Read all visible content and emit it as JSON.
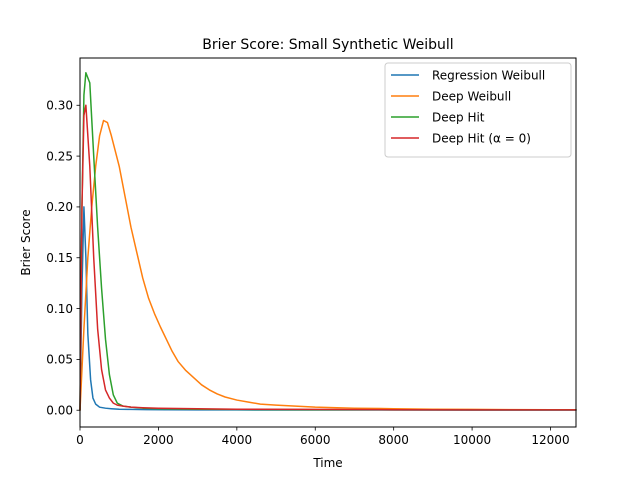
{
  "chart_data": {
    "type": "line",
    "title": "Brier Score: Small Synthetic Weibull",
    "xlabel": "Time",
    "ylabel": "Brier Score",
    "xlim": [
      0,
      12650
    ],
    "ylim": [
      -0.0165,
      0.3465
    ],
    "xticks": [
      0,
      2000,
      4000,
      6000,
      8000,
      10000,
      12000
    ],
    "xtick_labels": [
      "0",
      "2000",
      "4000",
      "6000",
      "8000",
      "10000",
      "12000"
    ],
    "yticks": [
      0.0,
      0.05,
      0.1,
      0.15,
      0.2,
      0.25,
      0.3
    ],
    "ytick_labels": [
      "0.00",
      "0.05",
      "0.10",
      "0.15",
      "0.20",
      "0.25",
      "0.30"
    ],
    "grid": false,
    "legend_position": "top-right",
    "series": [
      {
        "name": "Regression Weibull",
        "color": "#1f77b4",
        "x": [
          0,
          50,
          100,
          150,
          200,
          270,
          330,
          400,
          500,
          650,
          800,
          1000,
          1300,
          1700,
          2200,
          3000,
          4000,
          6000,
          8000,
          10000,
          12650
        ],
        "y": [
          0.0,
          0.12,
          0.2,
          0.15,
          0.075,
          0.03,
          0.012,
          0.006,
          0.003,
          0.002,
          0.0015,
          0.001,
          0.0008,
          0.0006,
          0.0005,
          0.0004,
          0.0003,
          0.0002,
          0.0002,
          0.0001,
          0.0001
        ]
      },
      {
        "name": "Deep Weibull",
        "color": "#ff7f0e",
        "x": [
          0,
          100,
          200,
          300,
          400,
          500,
          600,
          700,
          800,
          900,
          1000,
          1150,
          1300,
          1450,
          1600,
          1750,
          1900,
          2050,
          2200,
          2350,
          2500,
          2700,
          2900,
          3100,
          3300,
          3500,
          3700,
          4000,
          4300,
          4600,
          5000,
          5500,
          6000,
          7000,
          8000,
          9000,
          10000,
          11000,
          12000,
          12650
        ],
        "y": [
          0.0,
          0.08,
          0.15,
          0.2,
          0.24,
          0.27,
          0.285,
          0.283,
          0.27,
          0.255,
          0.24,
          0.21,
          0.18,
          0.155,
          0.13,
          0.11,
          0.095,
          0.082,
          0.07,
          0.058,
          0.048,
          0.039,
          0.032,
          0.025,
          0.02,
          0.016,
          0.013,
          0.01,
          0.008,
          0.006,
          0.005,
          0.004,
          0.003,
          0.002,
          0.0015,
          0.001,
          0.0008,
          0.0006,
          0.0005,
          0.0005
        ]
      },
      {
        "name": "Deep Hit",
        "color": "#2ca02c",
        "x": [
          0,
          50,
          100,
          150,
          250,
          350,
          450,
          550,
          650,
          750,
          850,
          950,
          1100,
          1300,
          1600,
          2000,
          3000,
          4000,
          6000,
          8000,
          10000,
          12650
        ],
        "y": [
          0.0,
          0.2,
          0.31,
          0.332,
          0.322,
          0.25,
          0.18,
          0.12,
          0.07,
          0.035,
          0.015,
          0.007,
          0.004,
          0.003,
          0.002,
          0.0015,
          0.001,
          0.0008,
          0.0005,
          0.0004,
          0.0003,
          0.0003
        ]
      },
      {
        "name": "Deep Hit (α = 0)",
        "color": "#d62728",
        "x": [
          0,
          50,
          100,
          150,
          250,
          350,
          450,
          550,
          650,
          750,
          850,
          950,
          1100,
          1300,
          1600,
          2000,
          3000,
          4000,
          6000,
          8000,
          10000,
          12650
        ],
        "y": [
          0.0,
          0.2,
          0.29,
          0.3,
          0.24,
          0.15,
          0.08,
          0.04,
          0.02,
          0.012,
          0.007,
          0.005,
          0.004,
          0.003,
          0.0025,
          0.002,
          0.0015,
          0.001,
          0.0008,
          0.0005,
          0.0004,
          0.0003
        ]
      }
    ]
  }
}
